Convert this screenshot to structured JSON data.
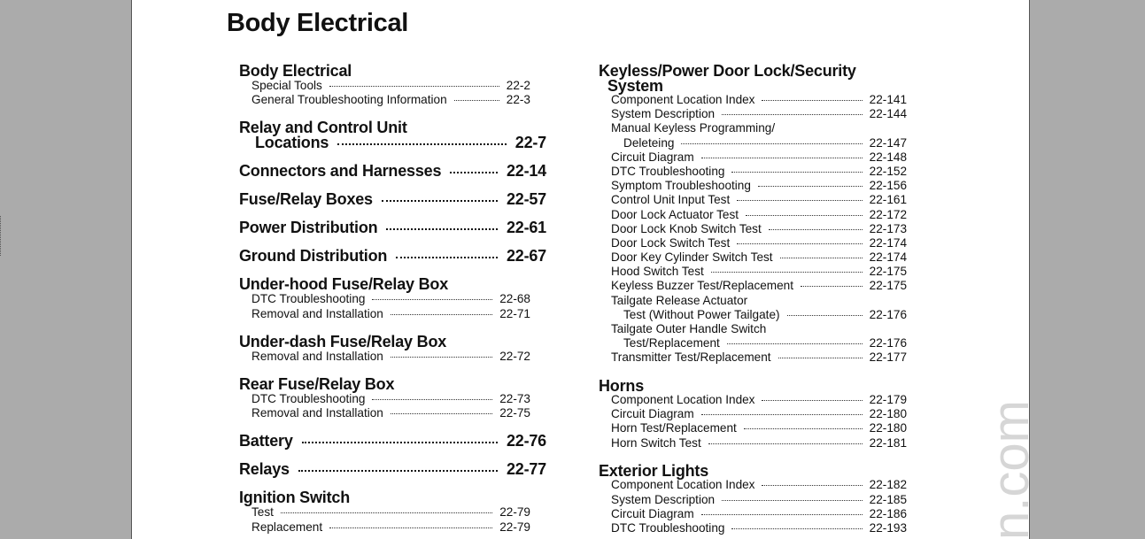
{
  "page_title": "Body Electrical",
  "watermark": "n.com",
  "left_column": [
    {
      "title": [
        "Body Electrical"
      ],
      "items": [
        {
          "label": [
            "Special Tools"
          ],
          "page": "22-2"
        },
        {
          "label": [
            "General Troubleshooting Information"
          ],
          "page": "22-3"
        }
      ]
    },
    {
      "title": [
        "Relay and Control Unit",
        "Locations"
      ],
      "page": "22-7",
      "items": []
    },
    {
      "title": [
        "Connectors and Harnesses"
      ],
      "page": "22-14",
      "items": []
    },
    {
      "title": [
        "Fuse/Relay Boxes"
      ],
      "page": "22-57",
      "items": []
    },
    {
      "title": [
        "Power Distribution"
      ],
      "page": "22-61",
      "items": []
    },
    {
      "title": [
        "Ground Distribution"
      ],
      "page": "22-67",
      "items": []
    },
    {
      "title": [
        "Under-hood Fuse/Relay Box"
      ],
      "items": [
        {
          "label": [
            "DTC Troubleshooting"
          ],
          "page": "22-68"
        },
        {
          "label": [
            "Removal and Installation"
          ],
          "page": "22-71"
        }
      ]
    },
    {
      "title": [
        "Under-dash Fuse/Relay Box"
      ],
      "items": [
        {
          "label": [
            "Removal and Installation"
          ],
          "page": "22-72"
        }
      ]
    },
    {
      "title": [
        "Rear Fuse/Relay Box"
      ],
      "items": [
        {
          "label": [
            "DTC Troubleshooting"
          ],
          "page": "22-73"
        },
        {
          "label": [
            "Removal and Installation"
          ],
          "page": "22-75"
        }
      ]
    },
    {
      "title": [
        "Battery"
      ],
      "page": "22-76",
      "items": []
    },
    {
      "title": [
        "Relays"
      ],
      "page": "22-77",
      "items": []
    },
    {
      "title": [
        "Ignition Switch"
      ],
      "items": [
        {
          "label": [
            "Test"
          ],
          "page": "22-79"
        },
        {
          "label": [
            "Replacement"
          ],
          "page": "22-79"
        }
      ]
    }
  ],
  "right_column": [
    {
      "title": [
        "Keyless/Power Door Lock/Security",
        "System"
      ],
      "items": [
        {
          "label": [
            "Component Location Index"
          ],
          "page": "22-141"
        },
        {
          "label": [
            "System Description"
          ],
          "page": "22-144"
        },
        {
          "label": [
            "Manual Keyless Programming/",
            "Deleteing"
          ],
          "page": "22-147"
        },
        {
          "label": [
            "Circuit Diagram"
          ],
          "page": "22-148"
        },
        {
          "label": [
            "DTC Troubleshooting"
          ],
          "page": "22-152"
        },
        {
          "label": [
            "Symptom Troubleshooting"
          ],
          "page": "22-156"
        },
        {
          "label": [
            "Control Unit Input Test"
          ],
          "page": "22-161"
        },
        {
          "label": [
            "Door Lock Actuator Test"
          ],
          "page": "22-172"
        },
        {
          "label": [
            "Door Lock Knob Switch Test"
          ],
          "page": "22-173"
        },
        {
          "label": [
            "Door Lock Switch Test"
          ],
          "page": "22-174"
        },
        {
          "label": [
            "Door Key Cylinder Switch Test"
          ],
          "page": "22-174"
        },
        {
          "label": [
            "Hood Switch Test"
          ],
          "page": "22-175"
        },
        {
          "label": [
            "Keyless Buzzer Test/Replacement"
          ],
          "page": "22-175"
        },
        {
          "label": [
            "Tailgate Release Actuator",
            "Test (Without Power Tailgate)"
          ],
          "page": "22-176"
        },
        {
          "label": [
            "Tailgate Outer Handle Switch",
            "Test/Replacement"
          ],
          "page": "22-176"
        },
        {
          "label": [
            "Transmitter Test/Replacement"
          ],
          "page": "22-177"
        }
      ]
    },
    {
      "title": [
        "Horns"
      ],
      "items": [
        {
          "label": [
            "Component Location Index"
          ],
          "page": "22-179"
        },
        {
          "label": [
            "Circuit Diagram"
          ],
          "page": "22-180"
        },
        {
          "label": [
            "Horn Test/Replacement"
          ],
          "page": "22-180"
        },
        {
          "label": [
            "Horn Switch Test"
          ],
          "page": "22-181"
        }
      ]
    },
    {
      "title": [
        "Exterior Lights"
      ],
      "items": [
        {
          "label": [
            "Component Location Index"
          ],
          "page": "22-182"
        },
        {
          "label": [
            "System Description"
          ],
          "page": "22-185"
        },
        {
          "label": [
            "Circuit Diagram"
          ],
          "page": "22-186"
        },
        {
          "label": [
            "DTC Troubleshooting"
          ],
          "page": "22-193"
        }
      ]
    }
  ]
}
